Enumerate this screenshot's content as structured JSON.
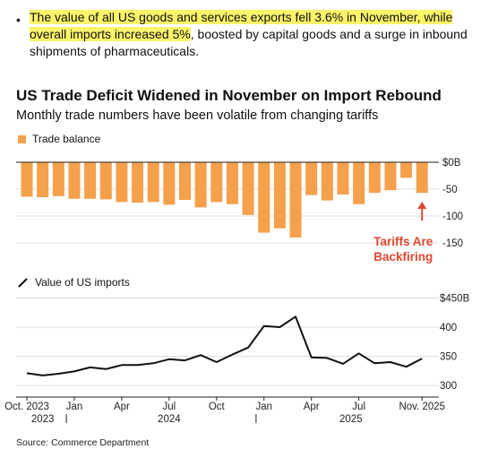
{
  "bullet": {
    "highlighted": "The value of all US goods and services exports fell 3.6% in November, while overall imports increased 5%",
    "rest": ", boosted by capital goods and a surge in inbound shipments of pharmaceuticals."
  },
  "title": "US Trade Deficit Widened in November on Import Rebound",
  "subtitle": "Monthly trade numbers have been volatile from changing tariffs",
  "source": "Source: Commerce Department",
  "colors": {
    "bar": "#f5a04b",
    "annotation": "#e0462f",
    "line": "#111111",
    "grid": "#dddddd"
  },
  "chart_data": [
    {
      "type": "bar",
      "title": "",
      "legend": "Trade balance",
      "x": [
        "2023-10",
        "2023-11",
        "2023-12",
        "2024-01",
        "2024-02",
        "2024-03",
        "2024-04",
        "2024-05",
        "2024-06",
        "2024-07",
        "2024-08",
        "2024-09",
        "2024-10",
        "2024-11",
        "2024-12",
        "2025-01",
        "2025-02",
        "2025-03",
        "2025-04",
        "2025-05",
        "2025-06",
        "2025-07",
        "2025-08",
        "2025-09",
        "2025-10",
        "2025-11"
      ],
      "values": [
        -64,
        -65,
        -63,
        -68,
        -68,
        -69,
        -74,
        -75,
        -74,
        -79,
        -70,
        -84,
        -74,
        -78,
        -98,
        -131,
        -123,
        -140,
        -61,
        -71,
        -60,
        -78,
        -57,
        -52,
        -29,
        -57
      ],
      "yticks": [
        {
          "v": 0,
          "label": "$0B"
        },
        {
          "v": -50,
          "label": "-50"
        },
        {
          "v": -100,
          "label": "-100"
        },
        {
          "v": -150,
          "label": "-150"
        }
      ],
      "ylim": [
        -150,
        0
      ],
      "annotation": {
        "text": [
          "Tariffs Are",
          "Backfiring"
        ],
        "target": "2025-11"
      }
    },
    {
      "type": "line",
      "title": "",
      "legend": "Value of US imports",
      "x": [
        "2023-10",
        "2023-11",
        "2023-12",
        "2024-01",
        "2024-02",
        "2024-03",
        "2024-04",
        "2024-05",
        "2024-06",
        "2024-07",
        "2024-08",
        "2024-09",
        "2024-10",
        "2024-11",
        "2024-12",
        "2025-01",
        "2025-02",
        "2025-03",
        "2025-04",
        "2025-05",
        "2025-06",
        "2025-07",
        "2025-08",
        "2025-09",
        "2025-10",
        "2025-11"
      ],
      "values": [
        321,
        317,
        320,
        324,
        331,
        328,
        335,
        335,
        338,
        345,
        343,
        352,
        340,
        353,
        365,
        402,
        400,
        418,
        348,
        347,
        337,
        355,
        338,
        340,
        332,
        346
      ],
      "yticks": [
        {
          "v": 450,
          "label": "$450B"
        },
        {
          "v": 400,
          "label": "400"
        },
        {
          "v": 350,
          "label": "350"
        },
        {
          "v": 300,
          "label": "300"
        }
      ],
      "ylim": [
        300,
        450
      ]
    }
  ],
  "x_axis": {
    "month_labels": [
      {
        "i": 0,
        "label": "Oct. 2023"
      },
      {
        "i": 3,
        "label": "Jan"
      },
      {
        "i": 6,
        "label": "Apr"
      },
      {
        "i": 9,
        "label": "Jul"
      },
      {
        "i": 12,
        "label": "Oct"
      },
      {
        "i": 15,
        "label": "Jan"
      },
      {
        "i": 18,
        "label": "Apr"
      },
      {
        "i": 21,
        "label": "Jul"
      },
      {
        "i": 25,
        "label": "Nov. 2025"
      }
    ],
    "year_labels": [
      {
        "label": "2023",
        "i": 1
      },
      {
        "label": "2024",
        "i": 9
      },
      {
        "label": "2025",
        "i": 20.5
      }
    ],
    "year_separators": [
      2.5,
      14.5
    ]
  }
}
